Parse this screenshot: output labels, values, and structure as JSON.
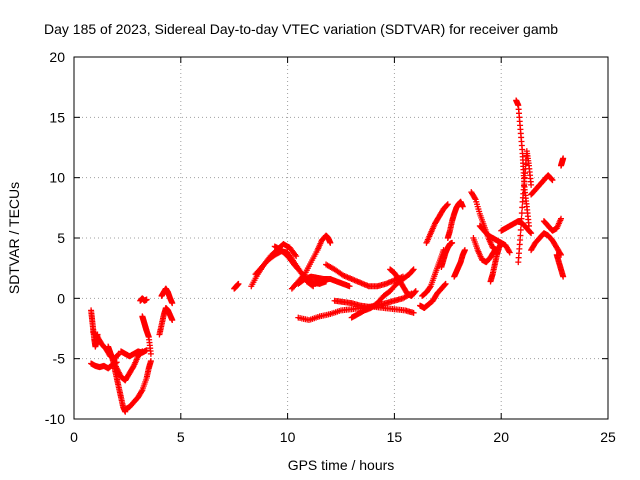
{
  "chart_data": {
    "type": "scatter",
    "title": "Day 185 of 2023, Sidereal Day-to-day VTEC variation (SDTVAR) for receiver gamb",
    "xlabel": "GPS time / hours",
    "ylabel": "SDTVAR / TECUs",
    "xlim": [
      0,
      25
    ],
    "ylim": [
      -10,
      20
    ],
    "xticks": [
      "0",
      "5",
      "10",
      "15",
      "20",
      "25"
    ],
    "yticks": [
      "-10",
      "-5",
      "0",
      "5",
      "10",
      "15",
      "20"
    ],
    "grid": true,
    "marker": "plus",
    "series": [
      {
        "name": "SDTVAR",
        "color": "#ff0000",
        "segments": [
          {
            "x": [
              0.8,
              0.85,
              0.9,
              0.95,
              1.0,
              1.05,
              1.1
            ],
            "y": [
              -1.0,
              -1.8,
              -2.6,
              -3.4,
              -4.0,
              -3.6,
              -3.0
            ]
          },
          {
            "x": [
              0.8,
              1.0,
              1.2,
              1.4,
              1.6,
              1.8,
              2.0
            ],
            "y": [
              -5.4,
              -5.6,
              -5.7,
              -5.6,
              -5.8,
              -5.5,
              -5.3
            ]
          },
          {
            "x": [
              0.9,
              1.1,
              1.3,
              1.5,
              1.7,
              1.9,
              2.1
            ],
            "y": [
              -2.8,
              -3.2,
              -3.8,
              -4.2,
              -4.8,
              -5.0,
              -4.6
            ]
          },
          {
            "x": [
              1.6,
              1.7,
              1.8,
              1.9,
              2.0,
              2.1,
              2.2,
              2.3,
              2.4
            ],
            "y": [
              -4.0,
              -4.5,
              -5.0,
              -5.8,
              -6.6,
              -7.4,
              -8.2,
              -9.0,
              -9.4
            ]
          },
          {
            "x": [
              1.8,
              2.0,
              2.2,
              2.4,
              2.6,
              2.8,
              3.0,
              3.2
            ],
            "y": [
              -5.0,
              -5.8,
              -6.5,
              -6.8,
              -6.2,
              -5.6,
              -4.8,
              -4.4
            ]
          },
          {
            "x": [
              2.2,
              2.4,
              2.6,
              2.8,
              3.0,
              3.2,
              3.4
            ],
            "y": [
              -4.4,
              -4.6,
              -4.8,
              -4.6,
              -4.4,
              -4.5,
              -4.3
            ]
          },
          {
            "x": [
              2.4,
              2.6,
              2.8,
              3.0,
              3.2,
              3.4,
              3.5,
              3.6
            ],
            "y": [
              -9.2,
              -9.0,
              -8.6,
              -8.2,
              -7.6,
              -6.6,
              -5.8,
              -5.2
            ]
          },
          {
            "x": [
              3.2,
              3.25,
              3.3,
              3.35,
              3.4,
              3.5,
              3.6
            ],
            "y": [
              -1.5,
              -1.8,
              -2.1,
              -2.4,
              -2.7,
              -3.2,
              -4.6
            ]
          },
          {
            "x": [
              3.1,
              3.2,
              3.3,
              3.4
            ],
            "y": [
              -0.2,
              0.0,
              -0.2,
              -0.1
            ]
          },
          {
            "x": [
              4.0,
              4.1,
              4.2,
              4.3,
              4.4,
              4.5,
              4.6
            ],
            "y": [
              -3.0,
              -2.2,
              -1.4,
              -0.8,
              -1.0,
              -1.4,
              -1.8
            ]
          },
          {
            "x": [
              4.1,
              4.2,
              4.3,
              4.4,
              4.5,
              4.6
            ],
            "y": [
              0.2,
              0.5,
              0.8,
              0.5,
              0.0,
              -0.4
            ]
          },
          {
            "x": [
              7.5,
              7.6,
              7.7
            ],
            "y": [
              0.8,
              1.0,
              1.2
            ]
          },
          {
            "x": [
              8.3,
              8.6,
              8.9,
              9.2,
              9.5,
              9.8,
              10.1,
              10.4
            ],
            "y": [
              1.0,
              2.0,
              2.8,
              3.5,
              4.0,
              4.5,
              4.2,
              3.5
            ]
          },
          {
            "x": [
              8.5,
              8.8,
              9.1,
              9.4,
              9.7,
              10.0,
              10.3,
              10.6,
              10.9,
              11.2
            ],
            "y": [
              2.0,
              2.6,
              3.2,
              3.6,
              3.9,
              3.8,
              3.0,
              2.2,
              1.4,
              1.0
            ]
          },
          {
            "x": [
              9.4,
              9.7,
              10.0,
              10.3,
              10.6,
              10.9,
              11.2,
              11.5,
              11.8
            ],
            "y": [
              4.3,
              4.0,
              3.5,
              2.8,
              2.2,
              1.6,
              1.3,
              1.2,
              1.4
            ]
          },
          {
            "x": [
              10.2,
              10.5,
              10.8,
              11.1,
              11.4,
              11.6,
              11.8,
              11.9,
              12.0
            ],
            "y": [
              0.8,
              1.4,
              2.0,
              3.0,
              4.0,
              4.8,
              5.2,
              5.0,
              4.6
            ]
          },
          {
            "x": [
              10.5,
              10.8,
              11.1,
              11.4,
              11.7,
              12.0,
              12.3,
              12.6,
              12.9
            ],
            "y": [
              1.2,
              1.6,
              1.8,
              1.7,
              1.6,
              1.6,
              1.4,
              1.2,
              1.0
            ]
          },
          {
            "x": [
              11.8,
              12.2,
              12.6,
              13.0,
              13.4,
              13.8,
              14.2,
              14.6,
              15.0,
              15.4
            ],
            "y": [
              2.8,
              2.4,
              1.9,
              1.6,
              1.3,
              1.0,
              1.0,
              1.2,
              1.5,
              1.8
            ]
          },
          {
            "x": [
              10.5,
              11.0,
              11.5,
              12.0,
              12.5,
              13.0,
              13.5,
              14.0,
              14.5,
              15.0,
              15.5,
              15.9
            ],
            "y": [
              -1.6,
              -1.8,
              -1.5,
              -1.3,
              -1.0,
              -0.9,
              -0.8,
              -0.7,
              -0.8,
              -0.9,
              -1.0,
              -1.2
            ]
          },
          {
            "x": [
              12.2,
              12.6,
              13.0,
              13.4,
              13.8,
              14.2,
              14.6,
              15.0,
              15.4,
              15.8
            ],
            "y": [
              -0.2,
              -0.3,
              -0.4,
              -0.6,
              -0.7,
              -0.6,
              -0.4,
              -0.2,
              0.0,
              0.4
            ]
          },
          {
            "x": [
              13.0,
              13.3,
              13.6,
              13.9,
              14.2,
              14.5,
              14.8,
              15.1,
              15.4,
              15.7,
              15.9
            ],
            "y": [
              -1.6,
              -1.3,
              -1.0,
              -0.8,
              -0.4,
              0.2,
              0.6,
              1.2,
              1.6,
              2.0,
              2.4
            ]
          },
          {
            "x": [
              14.8,
              15.0,
              15.2,
              15.4,
              15.6,
              15.8,
              16.0
            ],
            "y": [
              2.4,
              2.1,
              1.6,
              1.0,
              0.4,
              0.2,
              0.6
            ]
          },
          {
            "x": [
              16.2,
              16.4,
              16.6,
              16.8,
              17.0,
              17.2,
              17.4
            ],
            "y": [
              -0.6,
              -0.8,
              -0.5,
              -0.2,
              0.4,
              0.8,
              1.2
            ]
          },
          {
            "x": [
              16.3,
              16.5,
              16.7,
              16.9,
              17.1,
              17.3
            ],
            "y": [
              0.2,
              0.5,
              1.0,
              2.0,
              3.0,
              4.0
            ]
          },
          {
            "x": [
              16.5,
              16.7,
              16.9,
              17.1,
              17.3,
              17.5
            ],
            "y": [
              4.6,
              5.4,
              6.2,
              6.8,
              7.4,
              7.8
            ]
          },
          {
            "x": [
              17.2,
              17.3,
              17.4,
              17.5,
              17.6,
              17.7
            ],
            "y": [
              2.6,
              3.2,
              3.8,
              4.2,
              4.5,
              4.6
            ]
          },
          {
            "x": [
              17.5,
              17.6,
              17.7,
              17.8,
              17.9,
              18.0,
              18.1,
              18.2
            ],
            "y": [
              5.0,
              5.6,
              6.4,
              7.0,
              7.5,
              7.8,
              8.0,
              7.6
            ]
          },
          {
            "x": [
              17.8,
              17.9,
              18.0,
              18.1,
              18.2,
              18.3
            ],
            "y": [
              1.8,
              2.2,
              2.6,
              3.0,
              3.6,
              4.0
            ]
          },
          {
            "x": [
              18.6,
              18.8,
              19.0,
              19.2,
              19.4,
              19.6,
              19.8
            ],
            "y": [
              8.8,
              8.2,
              7.0,
              6.0,
              5.0,
              4.2,
              4.0
            ]
          },
          {
            "x": [
              18.7,
              18.9,
              19.1,
              19.3,
              19.5,
              19.7
            ],
            "y": [
              5.0,
              4.0,
              3.2,
              3.0,
              3.4,
              4.0
            ]
          },
          {
            "x": [
              19.0,
              19.2,
              19.4,
              19.6,
              19.8,
              20.0,
              20.2,
              20.4
            ],
            "y": [
              6.0,
              5.6,
              5.2,
              5.0,
              4.8,
              4.6,
              4.4,
              3.8
            ]
          },
          {
            "x": [
              19.5,
              19.6,
              19.7,
              19.8,
              19.9,
              20.0
            ],
            "y": [
              1.4,
              2.0,
              2.8,
              3.6,
              4.2,
              4.6
            ]
          },
          {
            "x": [
              20.0,
              20.2,
              20.4,
              20.6,
              20.8,
              21.0,
              21.2,
              21.4
            ],
            "y": [
              5.6,
              5.8,
              6.0,
              6.2,
              6.4,
              6.2,
              5.8,
              5.4
            ]
          },
          {
            "x": [
              20.7,
              20.8,
              20.9,
              21.0,
              21.05,
              21.1,
              21.2,
              21.3
            ],
            "y": [
              16.4,
              16.0,
              14.0,
              12.0,
              10.4,
              9.0,
              7.6,
              6.0
            ]
          },
          {
            "x": [
              20.8,
              20.9,
              21.0,
              21.1,
              21.2,
              21.3,
              21.4
            ],
            "y": [
              3.0,
              5.2,
              8.0,
              10.0,
              12.2,
              11.0,
              9.4
            ]
          },
          {
            "x": [
              21.4,
              21.6,
              21.8,
              22.0,
              22.2,
              22.4,
              22.6,
              22.8
            ],
            "y": [
              4.0,
              4.6,
              5.0,
              5.4,
              5.2,
              4.8,
              4.2,
              3.6
            ]
          },
          {
            "x": [
              21.4,
              21.6,
              21.8,
              22.0,
              22.2,
              22.4
            ],
            "y": [
              8.6,
              9.0,
              9.4,
              9.8,
              10.2,
              9.8
            ]
          },
          {
            "x": [
              22.0,
              22.2,
              22.4,
              22.6,
              22.8
            ],
            "y": [
              6.4,
              6.0,
              5.6,
              5.8,
              6.6
            ]
          },
          {
            "x": [
              22.6,
              22.7,
              22.8,
              22.9
            ],
            "y": [
              3.6,
              3.0,
              2.4,
              1.8
            ]
          },
          {
            "x": [
              22.8,
              22.85,
              22.9
            ],
            "y": [
              11.0,
              11.3,
              11.6
            ]
          }
        ]
      }
    ]
  }
}
